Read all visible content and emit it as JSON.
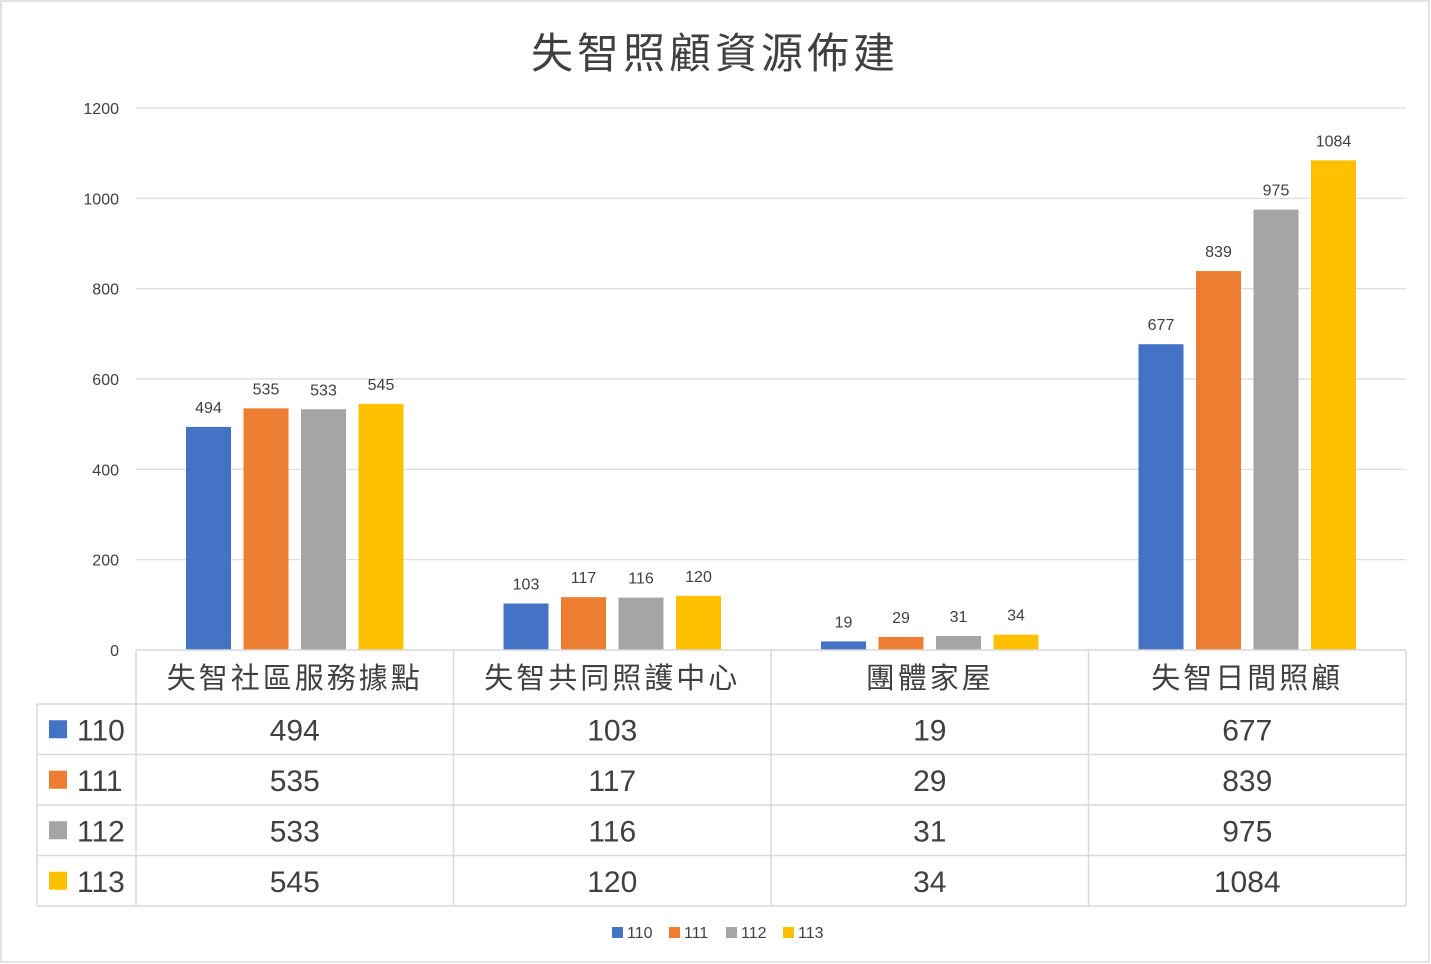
{
  "chart_data": {
    "type": "bar",
    "title": "失智照顧資源佈建",
    "categories": [
      "失智社區服務據點",
      "失智共同照護中心",
      "團體家屋",
      "失智日間照顧"
    ],
    "series": [
      {
        "name": "110",
        "color": "#4472C4",
        "values": [
          494,
          103,
          19,
          677
        ]
      },
      {
        "name": "111",
        "color": "#ED7D31",
        "values": [
          535,
          117,
          29,
          839
        ]
      },
      {
        "name": "112",
        "color": "#A5A5A5",
        "values": [
          533,
          116,
          31,
          975
        ]
      },
      {
        "name": "113",
        "color": "#FFC000",
        "values": [
          545,
          120,
          34,
          1084
        ]
      }
    ],
    "ylim": [
      0,
      1200
    ],
    "yticks": [
      0,
      200,
      400,
      600,
      800,
      1000,
      1200
    ],
    "grid": true,
    "data_table": true,
    "legend_position": "bottom"
  }
}
